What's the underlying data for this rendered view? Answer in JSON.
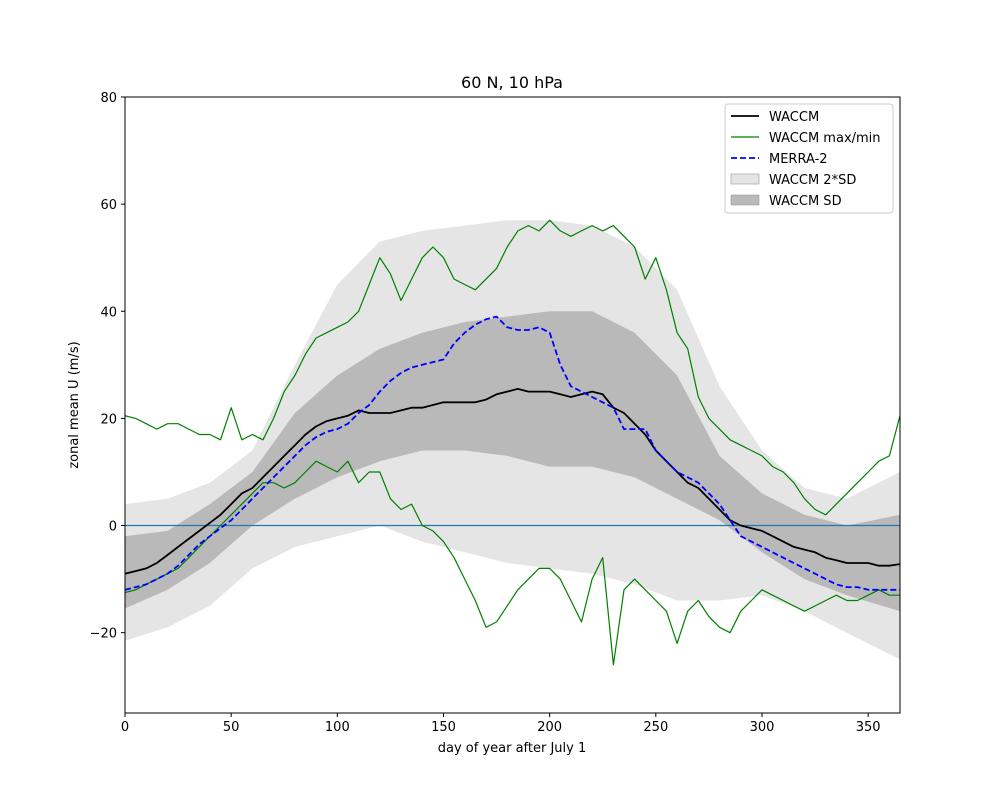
{
  "chart_data": {
    "type": "line",
    "title": "60 N, 10 hPa",
    "xlabel": "day of year after July 1",
    "ylabel": "zonal mean U (m/s)",
    "xlim": [
      0,
      365
    ],
    "ylim": [
      -35,
      80
    ],
    "xticks": [
      0,
      50,
      100,
      150,
      200,
      250,
      300,
      350
    ],
    "yticks": [
      -20,
      0,
      20,
      40,
      60,
      80
    ],
    "grid": false,
    "legend_position": "top-right",
    "zero_line": {
      "y": 0,
      "color": "#1f77b4"
    },
    "series": [
      {
        "name": "WACCM 2*SD",
        "kind": "band",
        "color": "#e5e5e5",
        "x": [
          0,
          20,
          40,
          60,
          80,
          100,
          120,
          140,
          160,
          180,
          200,
          220,
          240,
          260,
          280,
          300,
          320,
          340,
          365
        ],
        "lower": [
          -21.5,
          -19,
          -15,
          -8,
          -4,
          -2,
          0,
          -3,
          -5,
          -7,
          -8,
          -9,
          -11,
          -14,
          -14,
          -13,
          -16,
          -20,
          -25
        ],
        "upper": [
          4,
          5,
          8,
          14,
          30,
          45,
          53,
          55,
          56,
          57,
          57,
          56,
          52,
          44,
          26,
          14,
          7,
          5,
          10
        ]
      },
      {
        "name": "WACCM SD",
        "kind": "band",
        "color": "#b9b9b9",
        "x": [
          0,
          20,
          40,
          60,
          80,
          100,
          120,
          140,
          160,
          180,
          200,
          220,
          240,
          260,
          280,
          300,
          320,
          340,
          365
        ],
        "lower": [
          -15.5,
          -12,
          -7,
          0,
          5,
          9,
          12,
          14,
          14,
          13,
          11,
          11,
          9,
          5,
          1,
          -5,
          -10,
          -13,
          -16
        ],
        "upper": [
          -2,
          -1,
          4,
          10,
          21,
          28,
          33,
          36,
          38,
          39,
          40,
          40,
          36,
          28,
          13,
          6,
          2,
          0,
          2
        ]
      },
      {
        "name": "WACCM max/min",
        "kind": "line",
        "color": "#008000",
        "x": [
          0,
          5,
          10,
          15,
          20,
          25,
          30,
          35,
          40,
          45,
          50,
          55,
          60,
          65,
          70,
          75,
          80,
          85,
          90,
          95,
          100,
          105,
          110,
          115,
          120,
          125,
          130,
          135,
          140,
          145,
          150,
          155,
          160,
          165,
          170,
          175,
          180,
          185,
          190,
          195,
          200,
          205,
          210,
          215,
          220,
          225,
          230,
          235,
          240,
          245,
          250,
          255,
          260,
          265,
          270,
          275,
          280,
          285,
          290,
          295,
          300,
          305,
          310,
          315,
          320,
          325,
          330,
          335,
          340,
          345,
          350,
          355,
          360,
          365
        ],
        "y": [
          20.5,
          20,
          19,
          18,
          19,
          19,
          18,
          17,
          17,
          16,
          22,
          16,
          17,
          16,
          20,
          25,
          28,
          32,
          35,
          36,
          37,
          38,
          40,
          45,
          50,
          47,
          42,
          46,
          50,
          52,
          50,
          46,
          45,
          44,
          46,
          48,
          52,
          55,
          56,
          55,
          57,
          55,
          54,
          55,
          56,
          55,
          56,
          54,
          52,
          46,
          50,
          44,
          36,
          33,
          24,
          20,
          18,
          16,
          15,
          14,
          13,
          11,
          10,
          8,
          5,
          3,
          2,
          4,
          6,
          8,
          10,
          12,
          13,
          20.5
        ]
      },
      {
        "name": "",
        "kind": "line",
        "color": "#008000",
        "x": [
          0,
          5,
          10,
          15,
          20,
          25,
          30,
          35,
          40,
          45,
          50,
          55,
          60,
          65,
          70,
          75,
          80,
          85,
          90,
          95,
          100,
          105,
          110,
          115,
          120,
          125,
          130,
          135,
          140,
          145,
          150,
          155,
          160,
          165,
          170,
          175,
          180,
          185,
          190,
          195,
          200,
          205,
          210,
          215,
          220,
          225,
          230,
          235,
          240,
          245,
          250,
          255,
          260,
          265,
          270,
          275,
          280,
          285,
          290,
          295,
          300,
          305,
          310,
          315,
          320,
          325,
          330,
          335,
          340,
          345,
          350,
          355,
          360,
          365
        ],
        "y": [
          -12.5,
          -12,
          -11,
          -10,
          -9,
          -8,
          -6,
          -4,
          -2,
          0,
          2,
          4,
          6,
          8,
          8,
          7,
          8,
          10,
          12,
          11,
          10,
          12,
          8,
          10,
          10,
          5,
          3,
          4,
          0,
          -1,
          -3,
          -6,
          -10,
          -14,
          -19,
          -18,
          -15,
          -12,
          -10,
          -8,
          -8,
          -10,
          -14,
          -18,
          -10,
          -6,
          -26,
          -12,
          -10,
          -12,
          -14,
          -16,
          -22,
          -16,
          -14,
          -17,
          -19,
          -20,
          -16,
          -14,
          -12,
          -13,
          -14,
          -15,
          -16,
          -15,
          -14,
          -13,
          -14,
          -14,
          -13,
          -12,
          -13,
          -13
        ]
      },
      {
        "name": "WACCM",
        "kind": "line",
        "color": "#000000",
        "x": [
          0,
          5,
          10,
          15,
          20,
          25,
          30,
          35,
          40,
          45,
          50,
          55,
          60,
          65,
          70,
          75,
          80,
          85,
          90,
          95,
          100,
          105,
          110,
          115,
          120,
          125,
          130,
          135,
          140,
          145,
          150,
          155,
          160,
          165,
          170,
          175,
          180,
          185,
          190,
          195,
          200,
          205,
          210,
          215,
          220,
          225,
          230,
          235,
          240,
          245,
          250,
          255,
          260,
          265,
          270,
          275,
          280,
          285,
          290,
          295,
          300,
          305,
          310,
          315,
          320,
          325,
          330,
          335,
          340,
          345,
          350,
          355,
          360,
          365
        ],
        "y": [
          -9,
          -8.5,
          -8,
          -7,
          -5.5,
          -4,
          -2.5,
          -1,
          0.5,
          2,
          4,
          6,
          7,
          9,
          11,
          13,
          15,
          17,
          18.5,
          19.5,
          20,
          20.5,
          21.5,
          21,
          21,
          21,
          21.5,
          22,
          22,
          22.5,
          23,
          23,
          23,
          23,
          23.5,
          24.5,
          25,
          25.5,
          25,
          25,
          25,
          24.5,
          24,
          24.5,
          25,
          24.5,
          22,
          21,
          19,
          17,
          14,
          12,
          10,
          8,
          7,
          5,
          3,
          1,
          0,
          -0.5,
          -1,
          -2,
          -3,
          -4,
          -4.5,
          -5,
          -6,
          -6.5,
          -7,
          -7,
          -7,
          -7.5,
          -7.5,
          -7.2
        ]
      },
      {
        "name": "MERRA-2",
        "kind": "line",
        "color": "#0000ff",
        "dashed": true,
        "x": [
          0,
          5,
          10,
          15,
          20,
          25,
          30,
          35,
          40,
          45,
          50,
          55,
          60,
          65,
          70,
          75,
          80,
          85,
          90,
          95,
          100,
          105,
          110,
          115,
          120,
          125,
          130,
          135,
          140,
          145,
          150,
          155,
          160,
          165,
          170,
          175,
          180,
          185,
          190,
          195,
          200,
          205,
          210,
          215,
          220,
          225,
          230,
          235,
          240,
          245,
          250,
          255,
          260,
          265,
          270,
          275,
          280,
          285,
          290,
          295,
          300,
          305,
          310,
          315,
          320,
          325,
          330,
          335,
          340,
          345,
          350,
          355,
          360,
          365
        ],
        "y": [
          -12,
          -11.5,
          -11,
          -10,
          -9,
          -7.5,
          -5.5,
          -3.5,
          -2,
          -0.5,
          1,
          3,
          5,
          7,
          9,
          11,
          13,
          15,
          16.5,
          17.5,
          18,
          19,
          21,
          22.5,
          25,
          27,
          28.5,
          29.5,
          30,
          30.5,
          31,
          34,
          36,
          37.5,
          38.5,
          39,
          37,
          36.5,
          36.5,
          37,
          36,
          30,
          26,
          25,
          24,
          23,
          22,
          18,
          18,
          18,
          14,
          12,
          10,
          9,
          8,
          6,
          4,
          1,
          -2,
          -3,
          -4,
          -5,
          -6,
          -7,
          -8,
          -9,
          -10,
          -11,
          -11.5,
          -11.5,
          -12,
          -12,
          -12,
          -12
        ]
      }
    ],
    "legend": [
      {
        "label": "WACCM",
        "kind": "line",
        "color": "#000000"
      },
      {
        "label": "WACCM max/min",
        "kind": "line",
        "color": "#008000"
      },
      {
        "label": "MERRA-2",
        "kind": "dashed",
        "color": "#0000ff"
      },
      {
        "label": "WACCM 2*SD",
        "kind": "patch",
        "color": "#e5e5e5"
      },
      {
        "label": "WACCM SD",
        "kind": "patch",
        "color": "#b9b9b9"
      }
    ]
  }
}
